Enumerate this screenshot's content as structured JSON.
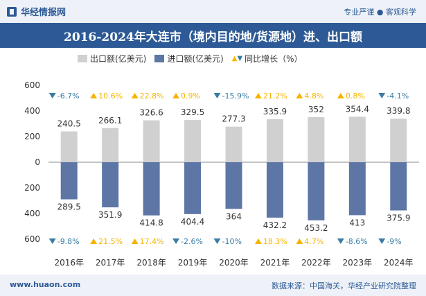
{
  "header": {
    "logo_text": "华经情报网",
    "tagline": "专业严谨 ● 客观科学"
  },
  "footer": {
    "site": "www.huaon.com",
    "source": "数据来源：中国海关，华经产业研究院整理"
  },
  "colors": {
    "export_bar": "#d0d0d0",
    "import_bar": "#5d76a6",
    "up_marker": "#f5b400",
    "down_marker": "#3a7ca5",
    "brand": "#2d5a96"
  },
  "chart_data": {
    "type": "bar",
    "title": "2016-2024年大连市（境内目的地/货源地）进、出口额",
    "categories": [
      "2016年",
      "2017年",
      "2018年",
      "2019年",
      "2020年",
      "2021年",
      "2022年",
      "2023年",
      "2024年"
    ],
    "series": [
      {
        "name": "出口额(亿美元)",
        "values": [
          240.5,
          266.1,
          326.6,
          329.5,
          277.3,
          335.9,
          352,
          354.4,
          339.8
        ]
      },
      {
        "name": "进口额(亿美元)",
        "values": [
          289.5,
          351.9,
          414.8,
          404.4,
          364,
          432.2,
          453.2,
          413,
          375.9
        ],
        "labels": [
          "289.5",
          "351.9",
          "414.8",
          "404.4",
          "364",
          "432.2",
          "453.2",
          "413",
          "375.9"
        ],
        "plotted_as": "negative"
      }
    ],
    "growth": {
      "legend": "同比增长（%）",
      "export": [
        -6.7,
        10.6,
        22.8,
        0.9,
        -15.9,
        21.2,
        4.8,
        0.8,
        -4.1
      ],
      "export_labels": [
        "-6.7%",
        "10.6%",
        "22.8%",
        "0.9%",
        "-15.9%",
        "21.2%",
        "4.8%",
        "0.8%",
        "-4.1%"
      ],
      "import": [
        -9.8,
        21.5,
        17.4,
        -2.6,
        -10,
        18.3,
        4.7,
        -8.6,
        -9
      ],
      "import_labels": [
        "-9.8%",
        "21.5%",
        "17.4%",
        "-2.6%",
        "-10%",
        "18.3%",
        "4.7%",
        "-8.6%",
        "-9%"
      ]
    },
    "yaxis": {
      "ylim": [
        -600,
        600
      ],
      "ticks": [
        600,
        400,
        200,
        0,
        200,
        400,
        600
      ],
      "tick_values": [
        600,
        400,
        200,
        0,
        -200,
        -400,
        -600
      ]
    },
    "xlabel": "",
    "ylabel": ""
  }
}
